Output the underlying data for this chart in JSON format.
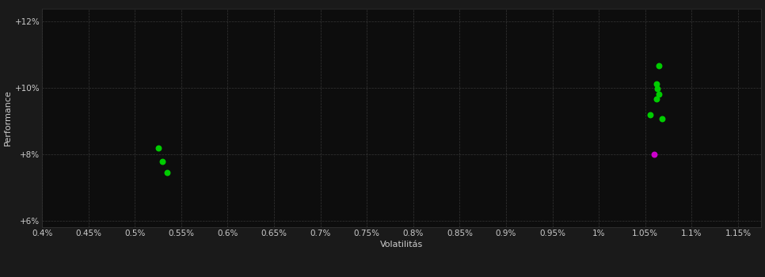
{
  "background_color": "#1a1a1a",
  "plot_bg_color": "#0d0d0d",
  "grid_color": "#3a3a3a",
  "xlabel": "Volatilitás",
  "ylabel": "Performance",
  "xlim": [
    0.004,
    0.01175
  ],
  "ylim": [
    0.058,
    0.124
  ],
  "xticks": [
    0.004,
    0.0045,
    0.005,
    0.0055,
    0.006,
    0.0065,
    0.007,
    0.0075,
    0.008,
    0.0085,
    0.009,
    0.0095,
    0.01,
    0.0105,
    0.011,
    0.0115
  ],
  "xtick_labels": [
    "0.4%",
    "0.45%",
    "0.5%",
    "0.55%",
    "0.6%",
    "0.65%",
    "0.7%",
    "0.75%",
    "0.8%",
    "0.85%",
    "0.9%",
    "0.95%",
    "1%",
    "1.05%",
    "1.1%",
    "1.15%"
  ],
  "yticks": [
    0.06,
    0.08,
    0.1,
    0.12
  ],
  "ytick_labels": [
    "+6%",
    "+8%",
    "+10%",
    "+12%"
  ],
  "green_points": [
    [
      0.00525,
      0.0818
    ],
    [
      0.0053,
      0.0778
    ],
    [
      0.00535,
      0.0745
    ],
    [
      0.01065,
      0.1068
    ],
    [
      0.01062,
      0.1012
    ],
    [
      0.01063,
      0.0998
    ],
    [
      0.01065,
      0.098
    ],
    [
      0.01062,
      0.0966
    ],
    [
      0.01055,
      0.0918
    ],
    [
      0.01068,
      0.0908
    ]
  ],
  "magenta_points": [
    [
      0.0106,
      0.08
    ]
  ],
  "point_size": 22,
  "text_color": "#cccccc",
  "label_fontsize": 8,
  "tick_fontsize": 7.5
}
